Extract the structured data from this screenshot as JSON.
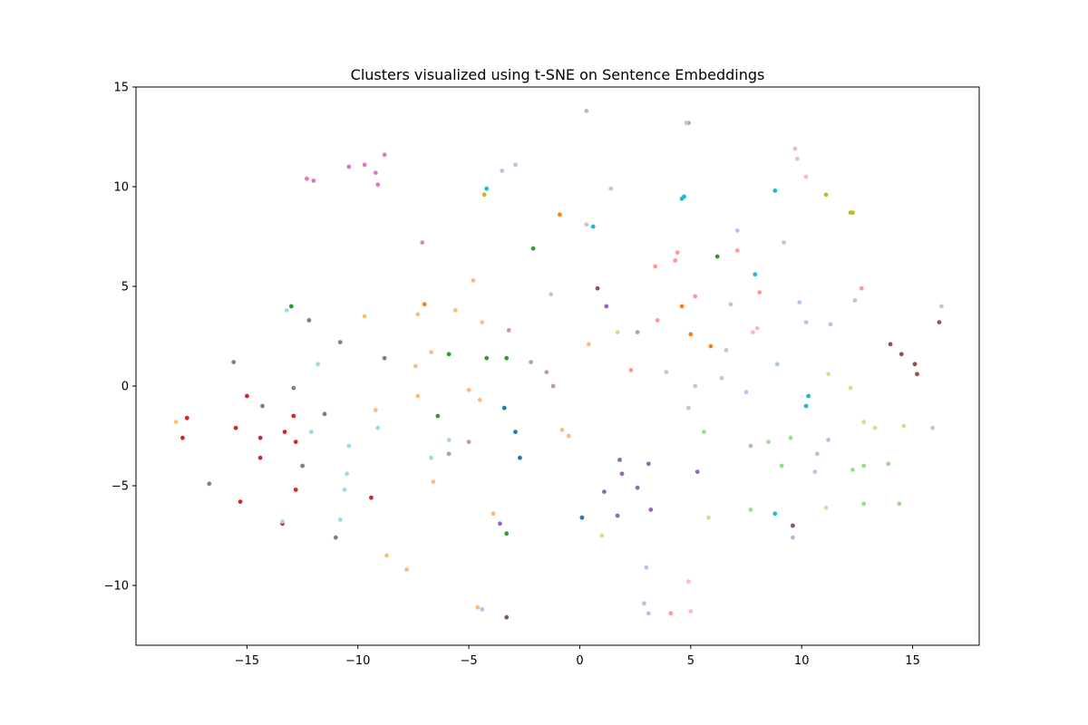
{
  "chart_data": {
    "type": "scatter",
    "title": "Clusters visualized using t-SNE on Sentence Embeddings",
    "xlabel": "",
    "ylabel": "",
    "xlim": [
      -20,
      18
    ],
    "ylim": [
      -13,
      15
    ],
    "x_ticks": [
      -15,
      -10,
      -5,
      0,
      5,
      10,
      15
    ],
    "x_tick_labels": [
      "−15",
      "−10",
      "−5",
      "0",
      "5",
      "10",
      "15"
    ],
    "y_ticks": [
      -10,
      -5,
      0,
      5,
      10,
      15
    ],
    "y_tick_labels": [
      "−10",
      "−5",
      "0",
      "5",
      "10",
      "15"
    ],
    "grid": false,
    "legend": "none",
    "points": [
      {
        "x": -12.3,
        "y": 10.4,
        "color": "#e377c2"
      },
      {
        "x": -12.0,
        "y": 10.3,
        "color": "#e377c2"
      },
      {
        "x": -10.4,
        "y": 11.0,
        "color": "#e377c2"
      },
      {
        "x": -9.7,
        "y": 11.1,
        "color": "#e377c2"
      },
      {
        "x": -9.2,
        "y": 10.7,
        "color": "#e377c2"
      },
      {
        "x": -8.8,
        "y": 11.6,
        "color": "#e377c2"
      },
      {
        "x": -9.1,
        "y": 10.1,
        "color": "#e377c2"
      },
      {
        "x": -17.7,
        "y": -1.6,
        "color": "#d62728"
      },
      {
        "x": -17.9,
        "y": -2.6,
        "color": "#d62728"
      },
      {
        "x": -15.0,
        "y": -0.5,
        "color": "#d62728"
      },
      {
        "x": -15.5,
        "y": -2.1,
        "color": "#d62728"
      },
      {
        "x": -14.4,
        "y": -2.6,
        "color": "#d62728"
      },
      {
        "x": -14.4,
        "y": -3.6,
        "color": "#d62728"
      },
      {
        "x": -13.3,
        "y": -2.3,
        "color": "#d62728"
      },
      {
        "x": -12.9,
        "y": -1.5,
        "color": "#d62728"
      },
      {
        "x": -12.8,
        "y": -2.8,
        "color": "#d62728"
      },
      {
        "x": -12.8,
        "y": -5.2,
        "color": "#d62728"
      },
      {
        "x": -15.3,
        "y": -5.8,
        "color": "#d62728"
      },
      {
        "x": -13.4,
        "y": -6.9,
        "color": "#d62728"
      },
      {
        "x": -9.4,
        "y": -5.6,
        "color": "#d62728"
      },
      {
        "x": -15.6,
        "y": 1.2,
        "color": "#7f7f7f"
      },
      {
        "x": -14.3,
        "y": -1.0,
        "color": "#7f7f7f"
      },
      {
        "x": -16.7,
        "y": -4.9,
        "color": "#7f7f7f"
      },
      {
        "x": -12.2,
        "y": 3.3,
        "color": "#7f7f7f"
      },
      {
        "x": -12.9,
        "y": -0.1,
        "color": "#7f7f7f"
      },
      {
        "x": -11.5,
        "y": -1.4,
        "color": "#7f7f7f"
      },
      {
        "x": -12.5,
        "y": -4.0,
        "color": "#7f7f7f"
      },
      {
        "x": -10.8,
        "y": 2.2,
        "color": "#7f7f7f"
      },
      {
        "x": -8.8,
        "y": 1.4,
        "color": "#7f7f7f"
      },
      {
        "x": -11.0,
        "y": -7.6,
        "color": "#7f7f7f"
      },
      {
        "x": -13.0,
        "y": 4.0,
        "color": "#2ca02c"
      },
      {
        "x": -5.9,
        "y": 1.6,
        "color": "#2ca02c"
      },
      {
        "x": -4.2,
        "y": 1.4,
        "color": "#2ca02c"
      },
      {
        "x": -3.3,
        "y": 1.4,
        "color": "#2ca02c"
      },
      {
        "x": -6.4,
        "y": -1.5,
        "color": "#2ca02c"
      },
      {
        "x": -2.1,
        "y": 6.9,
        "color": "#2ca02c"
      },
      {
        "x": 6.2,
        "y": 6.5,
        "color": "#2ca02c"
      },
      {
        "x": -3.3,
        "y": -7.4,
        "color": "#2ca02c"
      },
      {
        "x": -13.2,
        "y": 3.8,
        "color": "#9edae5"
      },
      {
        "x": -11.8,
        "y": 1.1,
        "color": "#9edae5"
      },
      {
        "x": -12.1,
        "y": -2.3,
        "color": "#9edae5"
      },
      {
        "x": -10.4,
        "y": -3.0,
        "color": "#9edae5"
      },
      {
        "x": -10.5,
        "y": -4.4,
        "color": "#9edae5"
      },
      {
        "x": -10.6,
        "y": -5.2,
        "color": "#9edae5"
      },
      {
        "x": -10.8,
        "y": -6.7,
        "color": "#9edae5"
      },
      {
        "x": -9.1,
        "y": -2.1,
        "color": "#9edae5"
      },
      {
        "x": -5.9,
        "y": -2.7,
        "color": "#9edae5"
      },
      {
        "x": -6.7,
        "y": -3.6,
        "color": "#9edae5"
      },
      {
        "x": -13.4,
        "y": -6.8,
        "color": "#9edae5"
      },
      {
        "x": -18.2,
        "y": -1.8,
        "color": "#ffbb78"
      },
      {
        "x": -9.7,
        "y": 3.5,
        "color": "#ffbb78"
      },
      {
        "x": -7.3,
        "y": 3.6,
        "color": "#ffbb78"
      },
      {
        "x": -6.7,
        "y": 1.7,
        "color": "#ffbb78"
      },
      {
        "x": -7.4,
        "y": 1.0,
        "color": "#ffbb78"
      },
      {
        "x": -7.3,
        "y": -0.5,
        "color": "#ffbb78"
      },
      {
        "x": -9.2,
        "y": -1.2,
        "color": "#ffbb78"
      },
      {
        "x": -4.8,
        "y": 5.3,
        "color": "#ffbb78"
      },
      {
        "x": -5.6,
        "y": 3.8,
        "color": "#ffbb78"
      },
      {
        "x": -4.4,
        "y": 3.2,
        "color": "#ffbb78"
      },
      {
        "x": -5.0,
        "y": -0.2,
        "color": "#ffbb78"
      },
      {
        "x": -4.5,
        "y": -0.7,
        "color": "#ffbb78"
      },
      {
        "x": -6.6,
        "y": -4.8,
        "color": "#ffbb78"
      },
      {
        "x": -3.9,
        "y": -6.4,
        "color": "#ffbb78"
      },
      {
        "x": -8.7,
        "y": -8.5,
        "color": "#ffbb78"
      },
      {
        "x": -7.8,
        "y": -9.2,
        "color": "#ffbb78"
      },
      {
        "x": -4.6,
        "y": -11.1,
        "color": "#ffbb78"
      },
      {
        "x": -0.8,
        "y": -2.2,
        "color": "#ffbb78"
      },
      {
        "x": -0.5,
        "y": -2.5,
        "color": "#ffbb78"
      },
      {
        "x": 0.4,
        "y": 2.1,
        "color": "#ffbb78"
      },
      {
        "x": 1.7,
        "y": 2.7,
        "color": "#dbdb8d"
      },
      {
        "x": -7.1,
        "y": 7.2,
        "color": "#c49c94"
      },
      {
        "x": -3.2,
        "y": 2.8,
        "color": "#c49c94"
      },
      {
        "x": -2.2,
        "y": 1.2,
        "color": "#c49c94"
      },
      {
        "x": -1.5,
        "y": 0.7,
        "color": "#c49c94"
      },
      {
        "x": -1.2,
        "y": 0.0,
        "color": "#c49c94"
      },
      {
        "x": -5.9,
        "y": -3.4,
        "color": "#c49c94"
      },
      {
        "x": -5.0,
        "y": -2.8,
        "color": "#c49c94"
      },
      {
        "x": 4.9,
        "y": 13.2,
        "color": "#c49c94"
      },
      {
        "x": 2.6,
        "y": 2.7,
        "color": "#c49c94"
      },
      {
        "x": -7.0,
        "y": 4.1,
        "color": "#ff7f0e"
      },
      {
        "x": -0.9,
        "y": 8.6,
        "color": "#ff7f0e"
      },
      {
        "x": 4.6,
        "y": 4.0,
        "color": "#ff7f0e"
      },
      {
        "x": 5.0,
        "y": 2.6,
        "color": "#ff7f0e"
      },
      {
        "x": 5.9,
        "y": 2.0,
        "color": "#ff7f0e"
      },
      {
        "x": -4.3,
        "y": 9.6,
        "color": "#bcbd22"
      },
      {
        "x": 11.1,
        "y": 9.6,
        "color": "#bcbd22"
      },
      {
        "x": 12.2,
        "y": 8.7,
        "color": "#bcbd22"
      },
      {
        "x": 12.3,
        "y": 8.7,
        "color": "#bcbd22"
      },
      {
        "x": -4.2,
        "y": 9.9,
        "color": "#17becf"
      },
      {
        "x": 0.6,
        "y": 8.0,
        "color": "#17becf"
      },
      {
        "x": 4.6,
        "y": 9.4,
        "color": "#17becf"
      },
      {
        "x": 4.7,
        "y": 9.5,
        "color": "#17becf"
      },
      {
        "x": 8.8,
        "y": 9.8,
        "color": "#17becf"
      },
      {
        "x": 7.9,
        "y": 5.6,
        "color": "#17becf"
      },
      {
        "x": 10.3,
        "y": -0.5,
        "color": "#17becf"
      },
      {
        "x": 10.2,
        "y": -1.0,
        "color": "#17becf"
      },
      {
        "x": 8.8,
        "y": -6.4,
        "color": "#17becf"
      },
      {
        "x": -3.5,
        "y": 10.8,
        "color": "#aec7e8"
      },
      {
        "x": -2.9,
        "y": 11.1,
        "color": "#aec7e8"
      },
      {
        "x": 7.1,
        "y": 7.8,
        "color": "#aec7e8"
      },
      {
        "x": 6.8,
        "y": 4.1,
        "color": "#aec7e8"
      },
      {
        "x": 9.9,
        "y": 4.2,
        "color": "#aec7e8"
      },
      {
        "x": 12.4,
        "y": 4.3,
        "color": "#aec7e8"
      },
      {
        "x": 10.2,
        "y": 3.2,
        "color": "#aec7e8"
      },
      {
        "x": 11.3,
        "y": 3.1,
        "color": "#aec7e8"
      },
      {
        "x": 8.9,
        "y": 1.1,
        "color": "#aec7e8"
      },
      {
        "x": 7.5,
        "y": -0.3,
        "color": "#aec7e8"
      },
      {
        "x": 11.2,
        "y": -2.7,
        "color": "#aec7e8"
      },
      {
        "x": 10.7,
        "y": -3.4,
        "color": "#aec7e8"
      },
      {
        "x": 10.6,
        "y": -4.3,
        "color": "#aec7e8"
      },
      {
        "x": 3.0,
        "y": -9.1,
        "color": "#aec7e8"
      },
      {
        "x": 2.9,
        "y": -10.9,
        "color": "#aec7e8"
      },
      {
        "x": 3.1,
        "y": -11.4,
        "color": "#aec7e8"
      },
      {
        "x": -4.4,
        "y": -11.2,
        "color": "#aec7e8"
      },
      {
        "x": 0.3,
        "y": 13.8,
        "color": "#c5b0d5"
      },
      {
        "x": 9.6,
        "y": -7.6,
        "color": "#c5b0d5"
      },
      {
        "x": 4.8,
        "y": 13.2,
        "color": "#c7c7c7"
      },
      {
        "x": 1.4,
        "y": 9.9,
        "color": "#c7c7c7"
      },
      {
        "x": 0.3,
        "y": 8.1,
        "color": "#c7c7c7"
      },
      {
        "x": -1.3,
        "y": 4.6,
        "color": "#c7c7c7"
      },
      {
        "x": 9.2,
        "y": 7.2,
        "color": "#c7c7c7"
      },
      {
        "x": 6.6,
        "y": 1.8,
        "color": "#c7c7c7"
      },
      {
        "x": 3.9,
        "y": 0.7,
        "color": "#c7c7c7"
      },
      {
        "x": 5.2,
        "y": 0.0,
        "color": "#c7c7c7"
      },
      {
        "x": 6.4,
        "y": 0.4,
        "color": "#c7c7c7"
      },
      {
        "x": 4.9,
        "y": -1.1,
        "color": "#c7c7c7"
      },
      {
        "x": 16.3,
        "y": 4.0,
        "color": "#c7c7c7"
      },
      {
        "x": 15.9,
        "y": -2.1,
        "color": "#c7c7c7"
      },
      {
        "x": 9.7,
        "y": 11.9,
        "color": "#f7b6d2"
      },
      {
        "x": 9.8,
        "y": 11.4,
        "color": "#f7b6d2"
      },
      {
        "x": 10.2,
        "y": 10.5,
        "color": "#f7b6d2"
      },
      {
        "x": 7.8,
        "y": 2.7,
        "color": "#f7b6d2"
      },
      {
        "x": 8.0,
        "y": 2.9,
        "color": "#f7b6d2"
      },
      {
        "x": 4.9,
        "y": -9.8,
        "color": "#f7b6d2"
      },
      {
        "x": 5.0,
        "y": -11.3,
        "color": "#f7b6d2"
      },
      {
        "x": 3.4,
        "y": 6.0,
        "color": "#ff9896"
      },
      {
        "x": 4.3,
        "y": 6.3,
        "color": "#ff9896"
      },
      {
        "x": 4.4,
        "y": 6.7,
        "color": "#ff9896"
      },
      {
        "x": 7.1,
        "y": 6.8,
        "color": "#ff9896"
      },
      {
        "x": 5.2,
        "y": 4.5,
        "color": "#ff9896"
      },
      {
        "x": 8.1,
        "y": 4.7,
        "color": "#ff9896"
      },
      {
        "x": 12.7,
        "y": 4.9,
        "color": "#ff9896"
      },
      {
        "x": 3.5,
        "y": 3.3,
        "color": "#ff9896"
      },
      {
        "x": 2.3,
        "y": 0.8,
        "color": "#ff9896"
      },
      {
        "x": 4.1,
        "y": -11.4,
        "color": "#ff9896"
      },
      {
        "x": 0.8,
        "y": 4.9,
        "color": "#8c564b"
      },
      {
        "x": 14.0,
        "y": 2.1,
        "color": "#8c564b"
      },
      {
        "x": 14.5,
        "y": 1.6,
        "color": "#8c564b"
      },
      {
        "x": 15.1,
        "y": 1.1,
        "color": "#8c564b"
      },
      {
        "x": 15.2,
        "y": 0.6,
        "color": "#8c564b"
      },
      {
        "x": 16.2,
        "y": 3.2,
        "color": "#8c564b"
      },
      {
        "x": 9.6,
        "y": -7.0,
        "color": "#8c564b"
      },
      {
        "x": -3.3,
        "y": -11.6,
        "color": "#8c564b"
      },
      {
        "x": 1.2,
        "y": 4.0,
        "color": "#9467bd"
      },
      {
        "x": 1.8,
        "y": -3.7,
        "color": "#9467bd"
      },
      {
        "x": 1.9,
        "y": -4.4,
        "color": "#9467bd"
      },
      {
        "x": 3.1,
        "y": -3.9,
        "color": "#9467bd"
      },
      {
        "x": 5.3,
        "y": -4.3,
        "color": "#9467bd"
      },
      {
        "x": 2.6,
        "y": -5.1,
        "color": "#9467bd"
      },
      {
        "x": 1.1,
        "y": -5.3,
        "color": "#9467bd"
      },
      {
        "x": 3.2,
        "y": -6.2,
        "color": "#9467bd"
      },
      {
        "x": 1.7,
        "y": -6.5,
        "color": "#9467bd"
      },
      {
        "x": -3.6,
        "y": -6.9,
        "color": "#9467bd"
      },
      {
        "x": -3.4,
        "y": -1.1,
        "color": "#1f77b4"
      },
      {
        "x": -2.9,
        "y": -2.3,
        "color": "#1f77b4"
      },
      {
        "x": -2.7,
        "y": -3.6,
        "color": "#1f77b4"
      },
      {
        "x": 0.1,
        "y": -6.6,
        "color": "#1f77b4"
      },
      {
        "x": 5.6,
        "y": -2.3,
        "color": "#98df8a"
      },
      {
        "x": 8.5,
        "y": -2.8,
        "color": "#98df8a"
      },
      {
        "x": 9.5,
        "y": -2.6,
        "color": "#98df8a"
      },
      {
        "x": 9.1,
        "y": -4.0,
        "color": "#98df8a"
      },
      {
        "x": 7.7,
        "y": -6.2,
        "color": "#98df8a"
      },
      {
        "x": 12.3,
        "y": -4.2,
        "color": "#98df8a"
      },
      {
        "x": 12.8,
        "y": -4.0,
        "color": "#98df8a"
      },
      {
        "x": 13.9,
        "y": -3.9,
        "color": "#98df8a"
      },
      {
        "x": 12.8,
        "y": -5.9,
        "color": "#98df8a"
      },
      {
        "x": 14.4,
        "y": -5.9,
        "color": "#98df8a"
      },
      {
        "x": 11.2,
        "y": 0.6,
        "color": "#dbdb8d"
      },
      {
        "x": 12.2,
        "y": -0.1,
        "color": "#dbdb8d"
      },
      {
        "x": 12.8,
        "y": -1.8,
        "color": "#dbdb8d"
      },
      {
        "x": 13.3,
        "y": -2.1,
        "color": "#dbdb8d"
      },
      {
        "x": 14.6,
        "y": -2.0,
        "color": "#dbdb8d"
      },
      {
        "x": 11.1,
        "y": -6.1,
        "color": "#dbdb8d"
      },
      {
        "x": 5.8,
        "y": -6.6,
        "color": "#dbdb8d"
      },
      {
        "x": 1.0,
        "y": -7.5,
        "color": "#dbdb8d"
      },
      {
        "x": 7.7,
        "y": -3.0,
        "color": "#c5b0d5"
      }
    ]
  }
}
